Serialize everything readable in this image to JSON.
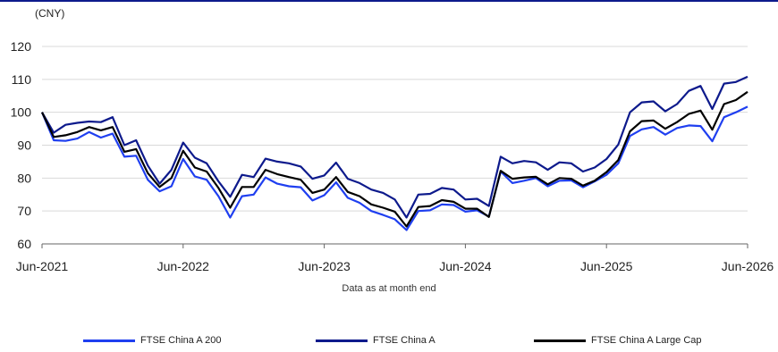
{
  "chart_data": {
    "type": "line",
    "unit_label": "(CNY)",
    "xlabel": "Data as at month end",
    "ylabel": "",
    "x_ticks": [
      "Jun-2021",
      "Jun-2022",
      "Jun-2023",
      "Jun-2024",
      "Jun-2025",
      "Jun-2026"
    ],
    "y_ticks": [
      60,
      70,
      80,
      90,
      100,
      110,
      120
    ],
    "ylim": [
      60,
      120
    ],
    "grid": "horizontal",
    "legend_position": "bottom",
    "x_start_label": "Jun-2021",
    "x_step": "month",
    "series": [
      {
        "name": "FTSE China A 200",
        "color": "#1f3ff0",
        "values": [
          100,
          91.5,
          91.3,
          92,
          94,
          92.3,
          93.5,
          86.5,
          86.8,
          79.5,
          76,
          77.5,
          85.8,
          80.5,
          79.5,
          74.5,
          68,
          74.5,
          75,
          80.2,
          78.3,
          77.5,
          77.2,
          73.2,
          74.8,
          78.7,
          74,
          72.5,
          70,
          68.8,
          67.5,
          64.2,
          70,
          70.2,
          72,
          71.8,
          69.8,
          70.2,
          68.3,
          82,
          78.5,
          79.2,
          80,
          77.5,
          79.2,
          79.3,
          77.2,
          79,
          81,
          84.5,
          92.8,
          94.8,
          95.5,
          93.2,
          95.2,
          96,
          95.8,
          91.2,
          98.5,
          100,
          101.7
        ]
      },
      {
        "name": "FTSE China A",
        "color": "#0d1a8c",
        "values": [
          100,
          93.8,
          96.2,
          96.8,
          97.2,
          97,
          98.5,
          90,
          91.5,
          83.8,
          78.3,
          82.5,
          90.8,
          86.2,
          84.5,
          79,
          74.3,
          81,
          80.3,
          85.9,
          85,
          84.5,
          83.5,
          79.8,
          80.8,
          84.7,
          79.8,
          78.5,
          76.5,
          75.5,
          73.5,
          68,
          75,
          75.2,
          77,
          76.5,
          73.5,
          73.7,
          71.5,
          86.5,
          84.5,
          85.2,
          84.8,
          82.5,
          84.8,
          84.5,
          82,
          83.2,
          85.8,
          90.2,
          100,
          103,
          103.3,
          100.3,
          102.5,
          106.5,
          108,
          101,
          108.7,
          109.2,
          110.8
        ]
      },
      {
        "name": "FTSE China A Large Cap",
        "color": "#000000",
        "values": [
          100,
          92.5,
          93,
          94,
          95.5,
          94.5,
          95.5,
          88,
          88.8,
          81.5,
          77.3,
          80,
          88.3,
          83.2,
          82,
          77,
          71,
          77.3,
          77.3,
          82.5,
          81.2,
          80.3,
          79.5,
          75.5,
          76.5,
          80.3,
          75.8,
          74.5,
          72,
          71,
          69.8,
          65.3,
          71.2,
          71.5,
          73.3,
          72.8,
          70.7,
          70.7,
          68.2,
          82.2,
          79.8,
          80.2,
          80.4,
          78.1,
          80,
          79.8,
          77.7,
          79.2,
          81.8,
          85.5,
          94.2,
          97.3,
          97.5,
          95,
          97,
          99.5,
          100.5,
          94.7,
          102.5,
          103.7,
          106.2
        ]
      }
    ]
  }
}
